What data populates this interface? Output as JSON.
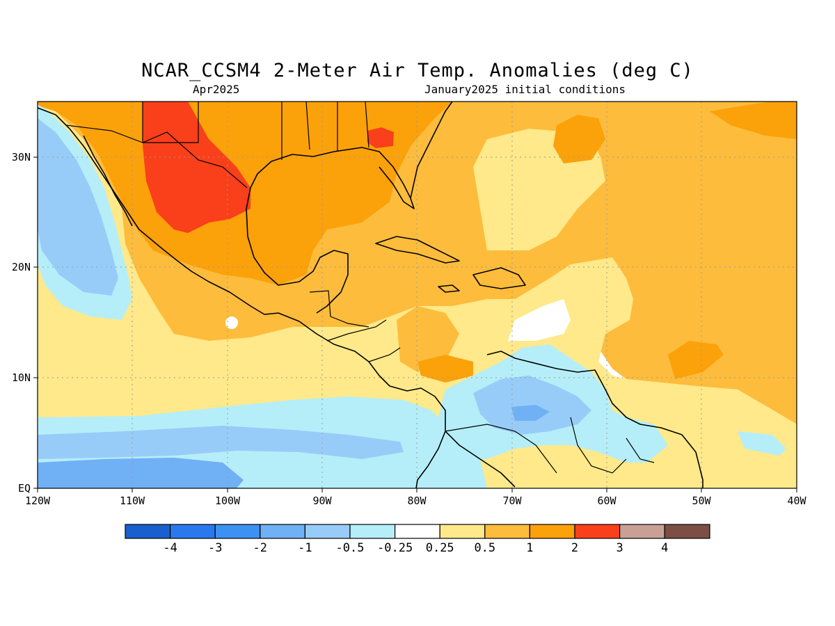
{
  "map": {
    "title": "NCAR_CCSM4 2-Meter Air Temp. Anomalies (deg C)",
    "valid_period": "Apr2025",
    "initial_conditions": "January2025 initial conditions",
    "region": "Caribbean, Gulf of Mexico and Central America",
    "lon_range": [
      -120,
      -40
    ],
    "lat_range": [
      0,
      35
    ],
    "x_ticks": [
      "120W",
      "110W",
      "100W",
      "90W",
      "80W",
      "70W",
      "60W",
      "50W",
      "40W"
    ],
    "y_ticks": [
      "EQ",
      "10N",
      "20N",
      "30N"
    ],
    "grid": "dotted"
  },
  "colorbar": {
    "colors": [
      "#1a5fd0",
      "#2a78ee",
      "#3d91f2",
      "#70b0f5",
      "#98ccf8",
      "#b5eef8",
      "#ffffff",
      "#ffe98a",
      "#fdbc3c",
      "#fba10a",
      "#f9401a",
      "#c8a096",
      "#7d4e44"
    ],
    "labels": [
      "-4",
      "-3",
      "-2",
      "-1",
      "-0.5",
      "-0.25",
      "0.25",
      "0.5",
      "1",
      "2",
      "3",
      "4"
    ]
  }
}
